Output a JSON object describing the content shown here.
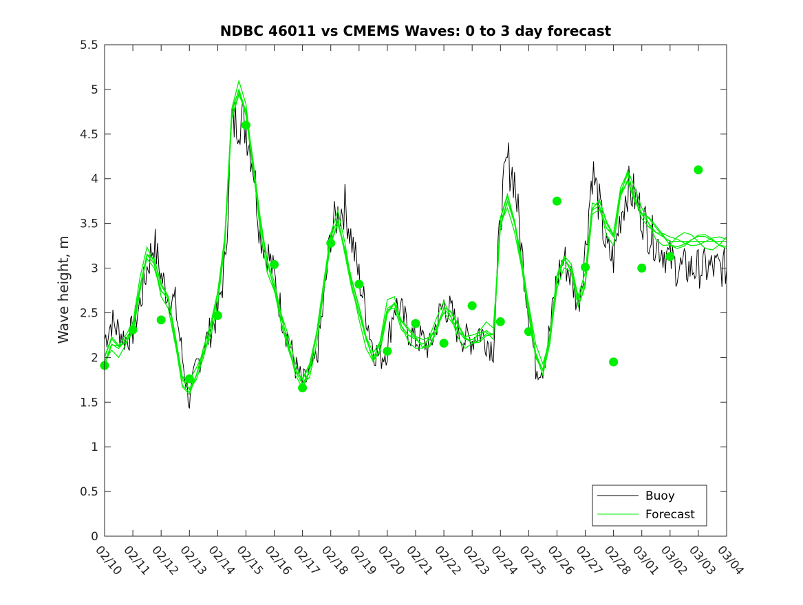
{
  "colors": {
    "buoy": "#000000",
    "forecast": "#00ee00",
    "axis": "#262626",
    "background": "#ffffff"
  },
  "chart_data": {
    "type": "line",
    "title": "NDBC 46011 vs CMEMS Waves: 0 to 3 day forecast",
    "xlabel": "",
    "ylabel": "Wave height, m",
    "xlim": [
      "02/10",
      "03/04"
    ],
    "ylim": [
      0,
      5.5
    ],
    "yticks": [
      0,
      0.5,
      1,
      1.5,
      2,
      2.5,
      3,
      3.5,
      4,
      4.5,
      5,
      5.5
    ],
    "xtick_labels": [
      "02/10",
      "02/11",
      "02/12",
      "02/13",
      "02/14",
      "02/15",
      "02/16",
      "02/17",
      "02/18",
      "02/19",
      "02/20",
      "02/21",
      "02/22",
      "02/23",
      "02/24",
      "02/25",
      "02/26",
      "02/27",
      "02/28",
      "03/01",
      "03/02",
      "03/03",
      "03/04"
    ],
    "grid": false,
    "legend_position": "bottom-right",
    "legend": [
      "Buoy",
      "Forecast"
    ],
    "series": [
      {
        "name": "Buoy",
        "style": "thin black line",
        "x_days": [
          0,
          0.25,
          0.5,
          0.75,
          1,
          1.25,
          1.5,
          1.75,
          2,
          2.25,
          2.5,
          2.75,
          3,
          3.25,
          3.5,
          3.75,
          4,
          4.25,
          4.5,
          4.75,
          5,
          5.25,
          5.5,
          5.75,
          6,
          6.25,
          6.5,
          6.75,
          7,
          7.25,
          7.5,
          7.75,
          8,
          8.25,
          8.5,
          8.75,
          9,
          9.25,
          9.5,
          9.75,
          10,
          10.25,
          10.5,
          10.75,
          11,
          11.25,
          11.5,
          11.75,
          12,
          12.25,
          12.5,
          12.75,
          13,
          13.25,
          13.5,
          13.75,
          14,
          14.25,
          14.5,
          14.75,
          15,
          15.25,
          15.5,
          15.75,
          16,
          16.25,
          16.5,
          16.75,
          17,
          17.25,
          17.5,
          17.75,
          18,
          18.25,
          18.5,
          18.75,
          19,
          19.25,
          19.5,
          19.75,
          20,
          20.25,
          20.5,
          20.75,
          21,
          21.25,
          21.5,
          21.75,
          22
        ],
        "values": [
          2.2,
          2.4,
          2.3,
          2.2,
          2.3,
          2.6,
          3.0,
          3.3,
          2.9,
          2.7,
          2.6,
          2.0,
          1.5,
          1.9,
          2.1,
          2.3,
          2.5,
          3.0,
          4.6,
          4.7,
          4.6,
          4.2,
          3.4,
          3.2,
          2.9,
          2.5,
          2.2,
          1.9,
          1.7,
          1.8,
          2.0,
          2.6,
          3.4,
          3.6,
          3.7,
          3.3,
          2.9,
          2.5,
          2.1,
          2.0,
          2.1,
          2.6,
          2.5,
          2.3,
          2.2,
          2.2,
          2.1,
          2.4,
          2.6,
          2.5,
          2.3,
          2.2,
          2.2,
          2.3,
          2.2,
          2.1,
          3.6,
          4.2,
          4.0,
          3.2,
          2.5,
          1.9,
          1.9,
          2.3,
          2.9,
          3.1,
          2.9,
          2.6,
          3.2,
          4.1,
          3.7,
          3.2,
          3.1,
          3.6,
          3.9,
          3.8,
          3.6,
          3.4,
          3.3,
          3.2,
          3.1,
          3.0,
          3.0,
          3.0,
          3.0,
          3.0,
          3.0,
          3.0,
          3.0
        ]
      },
      {
        "name": "Forecast",
        "style": "thin green lines",
        "x_days": [
          0,
          0.25,
          0.5,
          0.75,
          1,
          1.25,
          1.5,
          1.75,
          2,
          2.25,
          2.5,
          2.75,
          3,
          3.25,
          3.5,
          3.75,
          4,
          4.25,
          4.5,
          4.75,
          5,
          5.25,
          5.5,
          5.75,
          6,
          6.25,
          6.5,
          6.75,
          7,
          7.25,
          7.5,
          7.75,
          8,
          8.25,
          8.5,
          8.75,
          9,
          9.25,
          9.5,
          9.75,
          10,
          10.25,
          10.5,
          10.75,
          11,
          11.25,
          11.5,
          11.75,
          12,
          12.25,
          12.5,
          12.75,
          13,
          13.25,
          13.5,
          13.75,
          14,
          14.25,
          14.5,
          14.75,
          15,
          15.25,
          15.5,
          15.75,
          16,
          16.25,
          16.5,
          16.75,
          17,
          17.25,
          17.5,
          17.75,
          18,
          18.25,
          18.5,
          18.75,
          19,
          19.25,
          19.5,
          19.75,
          20,
          20.25,
          20.5,
          20.75,
          21,
          21.25,
          21.5,
          21.75,
          22
        ],
        "values": [
          1.95,
          2.15,
          2.1,
          2.2,
          2.35,
          2.8,
          3.15,
          3.05,
          2.75,
          2.65,
          2.2,
          1.75,
          1.65,
          1.8,
          2.05,
          2.3,
          2.7,
          3.3,
          4.75,
          5.0,
          4.75,
          4.15,
          3.5,
          3.05,
          2.8,
          2.45,
          2.15,
          1.85,
          1.7,
          1.85,
          2.25,
          2.8,
          3.35,
          3.55,
          3.2,
          2.8,
          2.5,
          2.2,
          2.0,
          2.15,
          2.55,
          2.6,
          2.35,
          2.25,
          2.2,
          2.15,
          2.2,
          2.35,
          2.55,
          2.45,
          2.3,
          2.2,
          2.2,
          2.25,
          2.3,
          2.25,
          3.5,
          3.75,
          3.5,
          3.05,
          2.55,
          2.05,
          1.85,
          2.2,
          2.85,
          3.1,
          3.0,
          2.65,
          2.85,
          3.65,
          3.7,
          3.45,
          3.35,
          3.85,
          4.05,
          3.8,
          3.6,
          3.5,
          3.4,
          3.35,
          3.3,
          3.3,
          3.3,
          3.3,
          3.3,
          3.3,
          3.3,
          3.3,
          3.3
        ]
      },
      {
        "name": "Forecast",
        "style": "large green markers (analysis at 00Z)",
        "x_days": [
          0,
          1,
          2,
          3,
          4,
          5,
          6,
          7,
          8,
          9,
          10,
          11,
          12,
          13,
          14,
          15,
          16,
          17,
          18,
          19,
          20,
          21
        ],
        "values": [
          1.91,
          2.31,
          2.42,
          1.76,
          2.47,
          4.6,
          3.04,
          1.66,
          3.28,
          2.82,
          2.07,
          2.38,
          2.16,
          2.58,
          2.4,
          2.29,
          3.75,
          3.01,
          1.95,
          3.0,
          3.13,
          4.1
        ]
      }
    ]
  }
}
